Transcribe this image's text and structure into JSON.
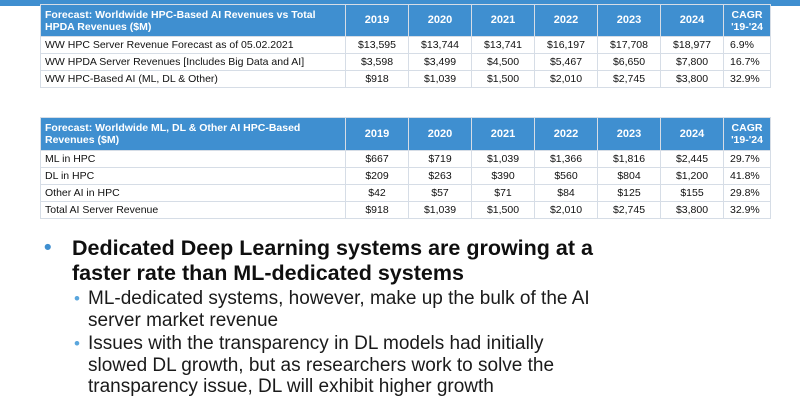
{
  "colors": {
    "header_bg": "#3f8fd0",
    "bullet": "#3f8fd0",
    "sub_bullet": "#5aa6dd",
    "grid": "#d6dde6"
  },
  "table1": {
    "header_label": "Forecast: Worldwide HPC-Based AI Revenues vs Total HPDA Revenues ($M)",
    "years": [
      "2019",
      "2020",
      "2021",
      "2022",
      "2023",
      "2024"
    ],
    "cagr_label": "CAGR '19-'24",
    "rows": [
      {
        "label": "WW HPC Server Revenue Forecast as of 05.02.2021",
        "values": [
          "$13,595",
          "$13,744",
          "$13,741",
          "$16,197",
          "$17,708",
          "$18,977"
        ],
        "cagr": "6.9%"
      },
      {
        "label": "WW HPDA Server Revenues [Includes Big Data and AI]",
        "values": [
          "$3,598",
          "$3,499",
          "$4,500",
          "$5,467",
          "$6,650",
          "$7,800"
        ],
        "cagr": "16.7%"
      },
      {
        "label": "WW HPC-Based AI (ML, DL & Other)",
        "values": [
          "$918",
          "$1,039",
          "$1,500",
          "$2,010",
          "$2,745",
          "$3,800"
        ],
        "cagr": "32.9%"
      }
    ]
  },
  "table2": {
    "header_label": "Forecast: Worldwide ML, DL & Other AI HPC-Based Revenues ($M)",
    "years": [
      "2019",
      "2020",
      "2021",
      "2022",
      "2023",
      "2024"
    ],
    "cagr_label": "CAGR '19-'24",
    "rows": [
      {
        "label": "ML in HPC",
        "values": [
          "$667",
          "$719",
          "$1,039",
          "$1,366",
          "$1,816",
          "$2,445"
        ],
        "cagr": "29.7%"
      },
      {
        "label": "DL in HPC",
        "values": [
          "$209",
          "$263",
          "$390",
          "$560",
          "$804",
          "$1,200"
        ],
        "cagr": "41.8%"
      },
      {
        "label": "Other AI in HPC",
        "values": [
          "$42",
          "$57",
          "$71",
          "$84",
          "$125",
          "$155"
        ],
        "cagr": "29.8%"
      },
      {
        "label": "Total AI Server Revenue",
        "values": [
          "$918",
          "$1,039",
          "$1,500",
          "$2,010",
          "$2,745",
          "$3,800"
        ],
        "cagr": "32.9%"
      }
    ]
  },
  "bullets": {
    "main": {
      "marker": "•",
      "lines": [
        "Dedicated Deep Learning systems are growing at a",
        "faster rate than ML-dedicated systems"
      ]
    },
    "subs": [
      {
        "marker": "•",
        "lines": [
          "ML-dedicated systems, however, make up the bulk of the AI",
          "server market revenue"
        ]
      },
      {
        "marker": "•",
        "lines": [
          "Issues with the transparency in DL models had initially",
          "slowed DL growth, but as researchers work to solve the",
          "transparency issue, DL will exhibit higher growth"
        ]
      }
    ]
  }
}
